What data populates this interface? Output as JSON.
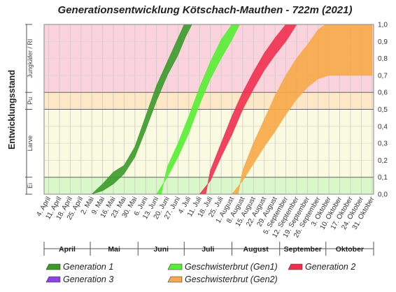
{
  "chart_data": {
    "type": "area",
    "title": "Generationsentwicklung Kötschach-Mauthen - 722m (2021)",
    "ylabel": "Entwicklungsstand",
    "ylim": [
      0,
      1
    ],
    "y_ticks": [
      "0,0",
      "0,1",
      "0,2",
      "0,3",
      "0,4",
      "0,5",
      "0,6",
      "0,7",
      "0,8",
      "0,9",
      "1,0"
    ],
    "x_ticks": [
      "4. April",
      "11. April",
      "18. April",
      "25. April",
      "2. Mai",
      "9. Mai",
      "16. Mai",
      "23. Mai",
      "30. Mai",
      "6. Juni",
      "13. Juni",
      "20. Juni",
      "27. Juni",
      "4. Juli",
      "11. Juli",
      "18. Juli",
      "25. Juli",
      "1. August",
      "8. August",
      "15. August",
      "22. August",
      "29. August",
      "5. September",
      "12. September",
      "19. September",
      "26. September",
      "3. Oktober",
      "10. Oktober",
      "17. Oktober",
      "24. Oktober",
      "31. Oktober"
    ],
    "months": [
      "April",
      "Mai",
      "Juni",
      "Juli",
      "August",
      "September",
      "Oktober"
    ],
    "stages": [
      {
        "label": "Ei",
        "from": 0.0,
        "to": 0.1,
        "color": "#d9f7c9"
      },
      {
        "label": "Larve",
        "from": 0.1,
        "to": 0.5,
        "color": "#fafae0"
      },
      {
        "label": "Pu",
        "from": 0.5,
        "to": 0.6,
        "color": "#fde7c5"
      },
      {
        "label": "Jungkäfer / RI",
        "from": 0.6,
        "to": 1.0,
        "color": "#fad3dc"
      }
    ],
    "series": [
      {
        "name": "Generation 1",
        "color": "#3a9a2a",
        "lower": [
          [
            "2021-05-02",
            0
          ],
          [
            "2021-05-09",
            0.02
          ],
          [
            "2021-05-16",
            0.06
          ],
          [
            "2021-05-23",
            0.12
          ],
          [
            "2021-05-30",
            0.22
          ],
          [
            "2021-06-06",
            0.38
          ],
          [
            "2021-06-13",
            0.55
          ],
          [
            "2021-06-20",
            0.7
          ],
          [
            "2021-06-27",
            0.82
          ],
          [
            "2021-07-02",
            0.93
          ],
          [
            "2021-07-06",
            1.0
          ]
        ],
        "upper": [
          [
            "2021-05-02",
            0
          ],
          [
            "2021-05-09",
            0.06
          ],
          [
            "2021-05-16",
            0.13
          ],
          [
            "2021-05-23",
            0.17
          ],
          [
            "2021-05-30",
            0.28
          ],
          [
            "2021-06-06",
            0.46
          ],
          [
            "2021-06-13",
            0.64
          ],
          [
            "2021-06-20",
            0.78
          ],
          [
            "2021-06-27",
            0.92
          ],
          [
            "2021-07-01",
            1.0
          ]
        ]
      },
      {
        "name": "Geschwisterbrut (Gen1)",
        "color": "#55ee33",
        "lower": [
          [
            "2021-06-13",
            0
          ],
          [
            "2021-06-20",
            0.1
          ],
          [
            "2021-06-27",
            0.22
          ],
          [
            "2021-07-04",
            0.36
          ],
          [
            "2021-07-11",
            0.53
          ],
          [
            "2021-07-18",
            0.68
          ],
          [
            "2021-07-25",
            0.8
          ],
          [
            "2021-08-01",
            0.91
          ],
          [
            "2021-08-06",
            1.0
          ]
        ],
        "upper": [
          [
            "2021-06-16",
            0
          ],
          [
            "2021-06-20",
            0.16
          ],
          [
            "2021-06-27",
            0.3
          ],
          [
            "2021-07-04",
            0.46
          ],
          [
            "2021-07-11",
            0.63
          ],
          [
            "2021-07-18",
            0.78
          ],
          [
            "2021-07-25",
            0.91
          ],
          [
            "2021-08-01",
            1.0
          ]
        ]
      },
      {
        "name": "Generation 2",
        "color": "#ee3050",
        "lower": [
          [
            "2021-07-11",
            0
          ],
          [
            "2021-07-18",
            0.08
          ],
          [
            "2021-07-25",
            0.22
          ],
          [
            "2021-08-01",
            0.35
          ],
          [
            "2021-08-08",
            0.5
          ],
          [
            "2021-08-15",
            0.62
          ],
          [
            "2021-08-22",
            0.73
          ],
          [
            "2021-08-29",
            0.82
          ],
          [
            "2021-09-05",
            0.9
          ],
          [
            "2021-09-12",
            1.0
          ]
        ],
        "upper": [
          [
            "2021-07-15",
            0
          ],
          [
            "2021-07-18",
            0.14
          ],
          [
            "2021-07-25",
            0.3
          ],
          [
            "2021-08-01",
            0.46
          ],
          [
            "2021-08-08",
            0.6
          ],
          [
            "2021-08-15",
            0.72
          ],
          [
            "2021-08-22",
            0.83
          ],
          [
            "2021-08-29",
            0.92
          ],
          [
            "2021-09-05",
            1.0
          ]
        ]
      },
      {
        "name": "Generation 3",
        "color": "#8c46e0",
        "lower": [],
        "upper": []
      },
      {
        "name": "Geschwisterbrut (Gen2)",
        "color": "#f7a848",
        "lower": [
          [
            "2021-08-01",
            0
          ],
          [
            "2021-08-08",
            0.08
          ],
          [
            "2021-08-15",
            0.18
          ],
          [
            "2021-08-22",
            0.28
          ],
          [
            "2021-08-29",
            0.37
          ],
          [
            "2021-09-05",
            0.47
          ],
          [
            "2021-09-12",
            0.56
          ],
          [
            "2021-09-19",
            0.63
          ],
          [
            "2021-09-26",
            0.68
          ],
          [
            "2021-10-03",
            0.7
          ],
          [
            "2021-10-31",
            0.7
          ]
        ],
        "upper": [
          [
            "2021-08-05",
            0
          ],
          [
            "2021-08-08",
            0.14
          ],
          [
            "2021-08-15",
            0.3
          ],
          [
            "2021-08-22",
            0.44
          ],
          [
            "2021-08-29",
            0.58
          ],
          [
            "2021-09-05",
            0.7
          ],
          [
            "2021-09-12",
            0.8
          ],
          [
            "2021-09-19",
            0.88
          ],
          [
            "2021-09-26",
            0.97
          ],
          [
            "2021-10-01",
            1.0
          ],
          [
            "2021-10-31",
            1.0
          ]
        ]
      }
    ]
  }
}
